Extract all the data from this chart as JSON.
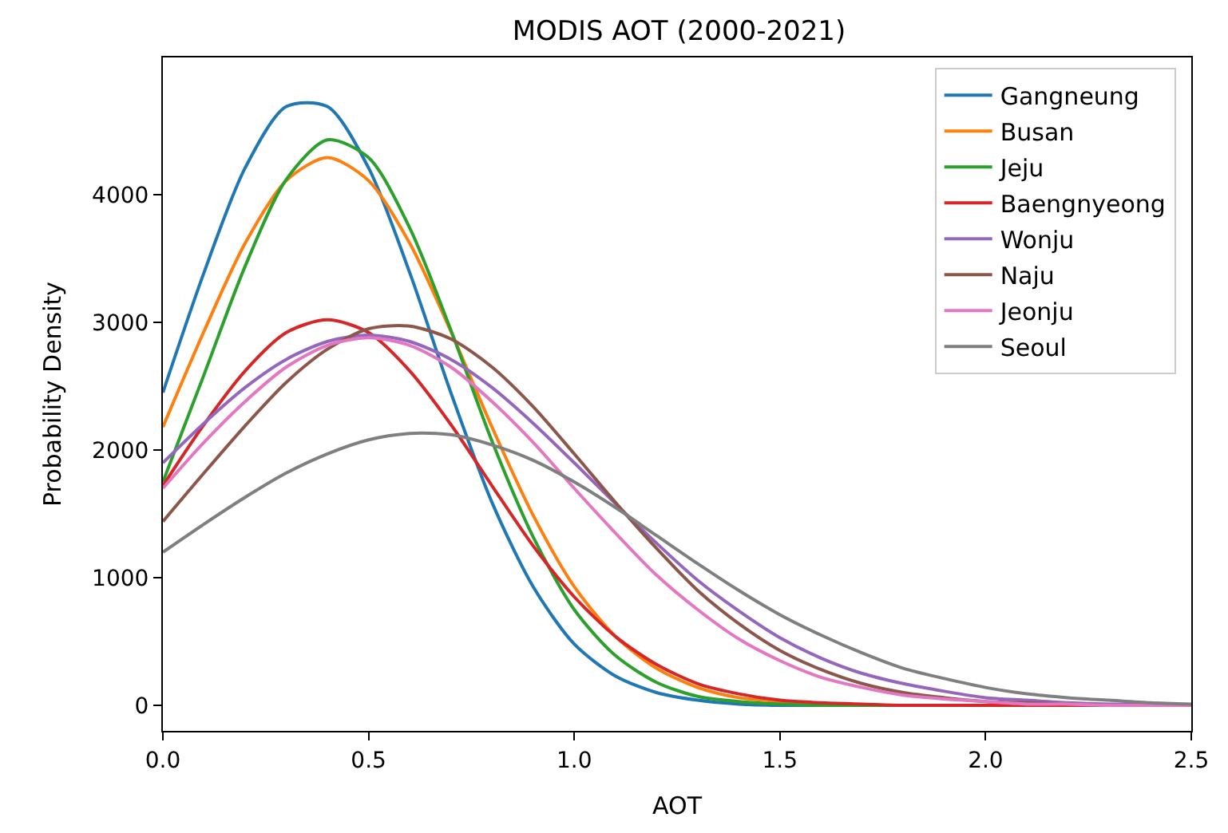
{
  "chart_data": {
    "type": "line",
    "title": "MODIS AOT (2000-2021)",
    "xlabel": "AOT",
    "ylabel": "Probability Density",
    "x": [
      0.0,
      0.1,
      0.2,
      0.3,
      0.4,
      0.5,
      0.6,
      0.7,
      0.8,
      0.9,
      1.0,
      1.1,
      1.2,
      1.3,
      1.4,
      1.5,
      1.6,
      1.7,
      1.8,
      1.9,
      2.0,
      2.1,
      2.2,
      2.3,
      2.4,
      2.5
    ],
    "xlim": [
      0,
      2.5
    ],
    "xticks": [
      {
        "value": 0,
        "label": "0.0"
      },
      {
        "value": 0.5,
        "label": "0.5"
      },
      {
        "value": 1,
        "label": "1.0"
      },
      {
        "value": 1.5,
        "label": "1.5"
      },
      {
        "value": 2,
        "label": "2.0"
      },
      {
        "value": 2.5,
        "label": "2.5"
      }
    ],
    "ylim": [
      -200,
      5075
    ],
    "yticks": [
      0,
      1000,
      2000,
      3000,
      4000
    ],
    "legend": "top right",
    "marker": "none",
    "line_style": "solid",
    "series": [
      {
        "name": "Gangneung",
        "color": "#1f77b4",
        "values": [
          2450,
          3390,
          4210,
          4690,
          4690,
          4210,
          3390,
          2450,
          1590,
          930,
          480,
          230,
          100,
          40,
          10,
          0,
          0,
          0,
          null,
          null,
          null,
          null,
          null,
          null,
          null,
          null
        ]
      },
      {
        "name": "Busan",
        "color": "#ff7f0e",
        "values": [
          2180,
          2930,
          3620,
          4110,
          4290,
          4110,
          3620,
          2930,
          2180,
          1490,
          930,
          540,
          290,
          140,
          60,
          30,
          10,
          null,
          null,
          null,
          null,
          null,
          null,
          null,
          null,
          null
        ]
      },
      {
        "name": "Jeju",
        "color": "#2ca02c",
        "values": [
          1750,
          2590,
          3440,
          4120,
          4430,
          4290,
          3740,
          2940,
          2070,
          1320,
          750,
          390,
          180,
          70,
          30,
          10,
          0,
          0,
          0,
          0,
          null,
          null,
          null,
          null,
          null,
          null
        ]
      },
      {
        "name": "Baengnyeong",
        "color": "#d62728",
        "values": [
          1720,
          2200,
          2620,
          2920,
          3020,
          2920,
          2620,
          2200,
          1720,
          1250,
          850,
          540,
          320,
          170,
          90,
          40,
          20,
          10,
          0,
          0,
          0,
          0,
          0,
          0,
          0,
          0
        ]
      },
      {
        "name": "Wonju",
        "color": "#9467bd",
        "values": [
          1900,
          2210,
          2490,
          2710,
          2850,
          2900,
          2850,
          2710,
          2490,
          2210,
          1900,
          1580,
          1270,
          980,
          740,
          530,
          370,
          250,
          170,
          110,
          60,
          40,
          20,
          10,
          10,
          0
        ]
      },
      {
        "name": "Naju",
        "color": "#8c564b",
        "values": [
          1440,
          1820,
          2190,
          2530,
          2790,
          2950,
          2970,
          2870,
          2650,
          2340,
          1970,
          1590,
          1230,
          900,
          640,
          430,
          280,
          170,
          100,
          60,
          30,
          20,
          10,
          0,
          0,
          0
        ]
      },
      {
        "name": "Jeonju",
        "color": "#e377c2",
        "values": [
          1700,
          2060,
          2380,
          2650,
          2820,
          2880,
          2820,
          2650,
          2380,
          2060,
          1700,
          1350,
          1020,
          750,
          520,
          350,
          220,
          140,
          80,
          50,
          30,
          10,
          10,
          0,
          0,
          0
        ]
      },
      {
        "name": "Seoul",
        "color": "#7f7f7f",
        "values": [
          1200,
          1420,
          1630,
          1820,
          1970,
          2080,
          2130,
          2120,
          2040,
          1920,
          1750,
          1550,
          1330,
          1110,
          900,
          710,
          550,
          410,
          290,
          210,
          140,
          90,
          60,
          40,
          20,
          10
        ]
      }
    ]
  }
}
